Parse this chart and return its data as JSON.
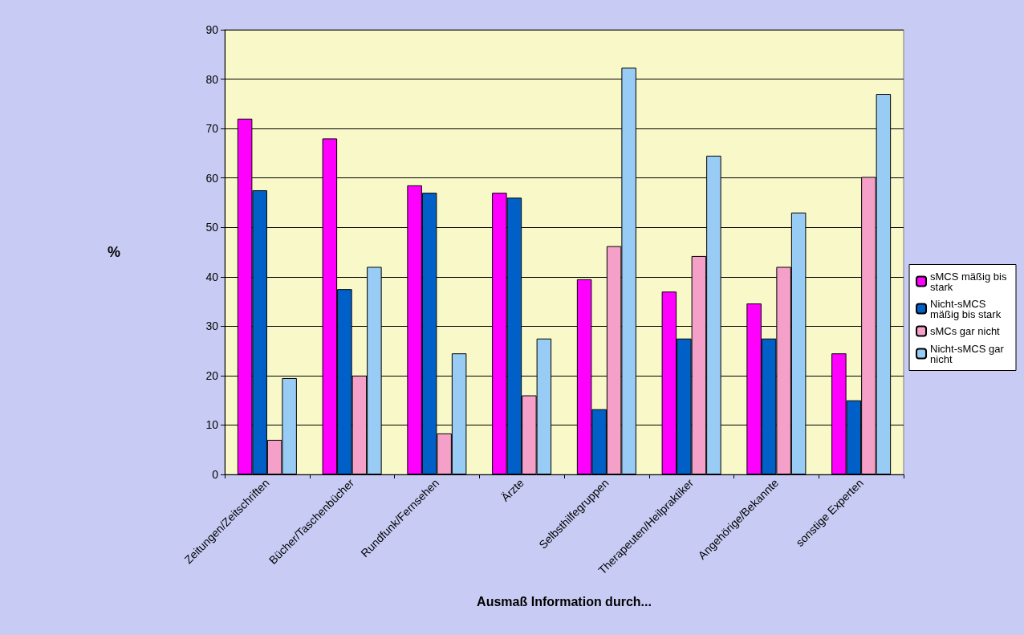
{
  "chart_data": {
    "type": "bar",
    "xlabel": "Ausmaß Information durch...",
    "ylabel": "%",
    "categories": [
      "Zeitungen/Zeitschriften",
      "Bücher/Taschenbücher",
      "Rundfunk/Fernsehen",
      "Ärzte",
      "Selbsthilfegruppen",
      "Therapeuten/Heilpraktiker",
      "Angehörige/Bekannte",
      "sonstige Experten"
    ],
    "series": [
      {
        "name": "sMCS mäßig bis stark",
        "color": "#ff00ff",
        "values": [
          72,
          68,
          58.5,
          57,
          39.5,
          37,
          34.6,
          24.5
        ]
      },
      {
        "name": "Nicht-sMCS mäßig bis stark",
        "color": "#0060c8",
        "values": [
          57.5,
          37.5,
          57,
          56,
          13.2,
          27.5,
          27.5,
          15
        ]
      },
      {
        "name": "sMCs gar nicht",
        "color": "#f4a0c8",
        "values": [
          7,
          20,
          8.3,
          16,
          46.2,
          44.2,
          42,
          60.2
        ]
      },
      {
        "name": "Nicht-sMCS gar nicht",
        "color": "#99ccf4",
        "values": [
          19.5,
          42,
          24.5,
          27.5,
          82.3,
          64.5,
          53,
          77
        ]
      }
    ],
    "ylim": [
      0,
      90
    ],
    "yticks": [
      0,
      10,
      20,
      30,
      40,
      50,
      60,
      70,
      80,
      90
    ],
    "grid": "y",
    "legend": "right"
  }
}
